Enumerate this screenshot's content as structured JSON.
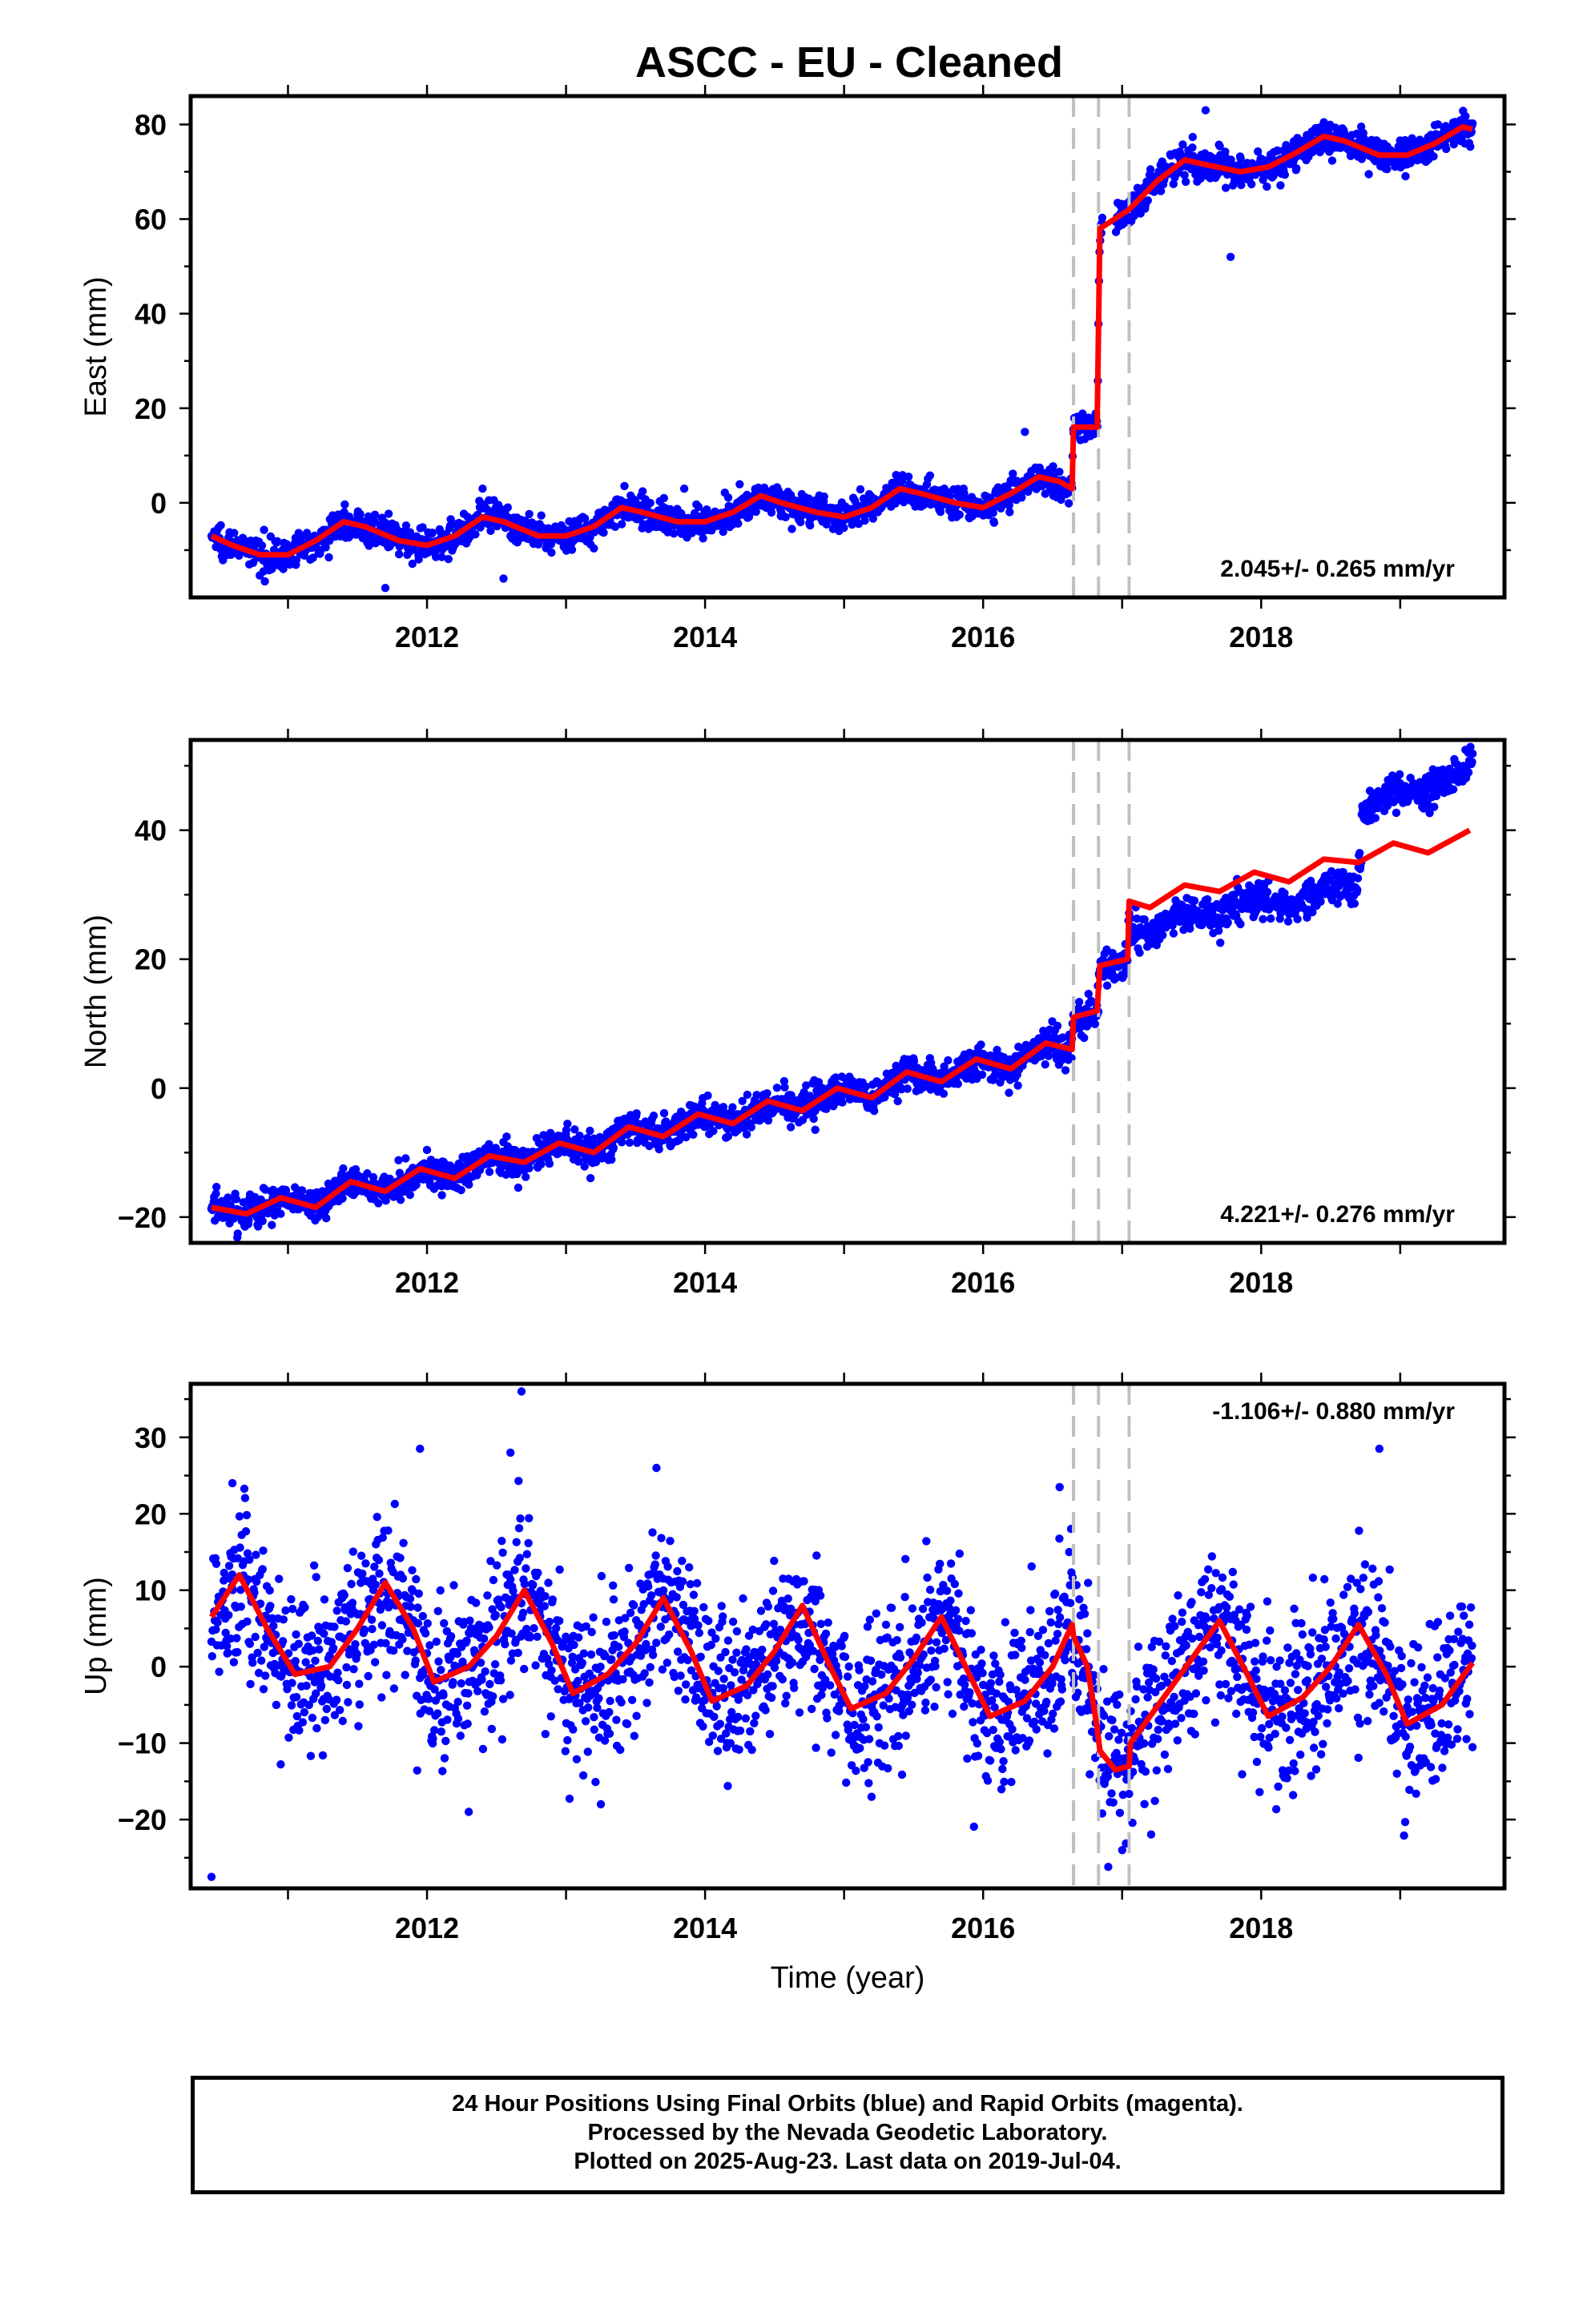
{
  "title": "ASCC  - EU - Cleaned",
  "footer": {
    "line1": "24 Hour Positions Using Final Orbits (blue) and Rapid Orbits (magenta).",
    "line2": "Processed by the Nevada Geodetic Laboratory.",
    "line3": "Plotted on 2025-Aug-23. Last data on 2019-Jul-04."
  },
  "colors": {
    "data_points": "#0000ff",
    "model_line": "#ff0000",
    "event_lines": "#c0c0c0"
  },
  "chart_data": [
    {
      "type": "scatter",
      "ylabel": "East (mm)",
      "xlabel": "",
      "xlim": [
        2010.3,
        2019.75
      ],
      "ylim": [
        -20,
        86
      ],
      "xticks": [
        2012,
        2014,
        2016,
        2018
      ],
      "xtick_labels": [
        "2012",
        "2014",
        "2016",
        "2018"
      ],
      "yticks": [
        0,
        20,
        40,
        60,
        80
      ],
      "ytick_labels": [
        "0",
        "20",
        "40",
        "60",
        "80"
      ],
      "rate_label": "2.045+/- 0.265 mm/yr",
      "rate_position": "bottom-right",
      "event_lines": [
        2016.65,
        2016.83,
        2017.05
      ],
      "model_knots": [
        [
          2010.45,
          -7
        ],
        [
          2010.6,
          -9
        ],
        [
          2010.8,
          -11
        ],
        [
          2011.0,
          -11
        ],
        [
          2011.2,
          -8
        ],
        [
          2011.4,
          -4
        ],
        [
          2011.55,
          -5
        ],
        [
          2011.8,
          -8
        ],
        [
          2012.0,
          -9
        ],
        [
          2012.2,
          -7
        ],
        [
          2012.4,
          -3
        ],
        [
          2012.55,
          -4
        ],
        [
          2012.8,
          -7
        ],
        [
          2013.0,
          -7
        ],
        [
          2013.2,
          -5
        ],
        [
          2013.4,
          -1
        ],
        [
          2013.55,
          -2
        ],
        [
          2013.8,
          -4
        ],
        [
          2014.0,
          -4
        ],
        [
          2014.2,
          -2
        ],
        [
          2014.4,
          1.5
        ],
        [
          2014.55,
          0
        ],
        [
          2014.8,
          -2
        ],
        [
          2015.0,
          -3
        ],
        [
          2015.2,
          -1
        ],
        [
          2015.4,
          3
        ],
        [
          2015.55,
          2
        ],
        [
          2015.8,
          0
        ],
        [
          2016.0,
          -1
        ],
        [
          2016.2,
          2
        ],
        [
          2016.4,
          5.5
        ],
        [
          2016.55,
          4.5
        ],
        [
          2016.64,
          3
        ],
        [
          2016.65,
          16
        ],
        [
          2016.82,
          16
        ],
        [
          2016.84,
          58
        ],
        [
          2017.05,
          62
        ],
        [
          2017.25,
          68
        ],
        [
          2017.45,
          72.5
        ],
        [
          2017.6,
          71.5
        ],
        [
          2017.85,
          70
        ],
        [
          2018.05,
          71
        ],
        [
          2018.25,
          74
        ],
        [
          2018.45,
          77.5
        ],
        [
          2018.6,
          76.5
        ],
        [
          2018.85,
          73.5
        ],
        [
          2019.05,
          73.5
        ],
        [
          2019.25,
          76
        ],
        [
          2019.45,
          79.5
        ],
        [
          2019.52,
          79
        ]
      ],
      "outliers": [
        [
          2017.78,
          52
        ],
        [
          2011.7,
          -18
        ],
        [
          2012.55,
          -16
        ],
        [
          2016.3,
          15
        ],
        [
          2017.6,
          83
        ],
        [
          2012.4,
          3
        ],
        [
          2013.85,
          3
        ]
      ],
      "noise_sigma": 1.6,
      "approx_points": 2300
    },
    {
      "type": "scatter",
      "ylabel": "North (mm)",
      "xlabel": "",
      "xlim": [
        2010.3,
        2019.75
      ],
      "ylim": [
        -24,
        54
      ],
      "xticks": [
        2012,
        2014,
        2016,
        2018
      ],
      "xtick_labels": [
        "2012",
        "2014",
        "2016",
        "2018"
      ],
      "yticks": [
        -20,
        0,
        20,
        40
      ],
      "ytick_labels": [
        "−20",
        "0",
        "20",
        "40"
      ],
      "rate_label": "4.221+/- 0.276 mm/yr",
      "rate_position": "bottom-right",
      "event_lines": [
        2016.65,
        2016.83,
        2017.05
      ],
      "model_knots": [
        [
          2010.45,
          -18.5
        ],
        [
          2010.7,
          -19.5
        ],
        [
          2010.95,
          -17
        ],
        [
          2011.2,
          -18.5
        ],
        [
          2011.45,
          -14.5
        ],
        [
          2011.7,
          -16
        ],
        [
          2011.95,
          -12.5
        ],
        [
          2012.2,
          -14
        ],
        [
          2012.45,
          -10.5
        ],
        [
          2012.7,
          -11.5
        ],
        [
          2012.95,
          -8.5
        ],
        [
          2013.2,
          -10
        ],
        [
          2013.45,
          -6
        ],
        [
          2013.7,
          -7.5
        ],
        [
          2013.95,
          -4
        ],
        [
          2014.2,
          -5.5
        ],
        [
          2014.45,
          -2
        ],
        [
          2014.7,
          -3.5
        ],
        [
          2014.95,
          0
        ],
        [
          2015.2,
          -1.5
        ],
        [
          2015.45,
          2.5
        ],
        [
          2015.7,
          1
        ],
        [
          2015.95,
          4.5
        ],
        [
          2016.2,
          3
        ],
        [
          2016.45,
          7
        ],
        [
          2016.64,
          6
        ],
        [
          2016.65,
          11
        ],
        [
          2016.82,
          12
        ],
        [
          2016.84,
          19
        ],
        [
          2017.04,
          20
        ],
        [
          2017.05,
          29
        ],
        [
          2017.2,
          28
        ],
        [
          2017.45,
          31.5
        ],
        [
          2017.7,
          30.5
        ],
        [
          2017.95,
          33.5
        ],
        [
          2018.2,
          32
        ],
        [
          2018.45,
          35.5
        ],
        [
          2018.7,
          35
        ],
        [
          2018.95,
          38
        ],
        [
          2019.2,
          36.5
        ],
        [
          2019.5,
          40
        ]
      ],
      "data_offset": [
        [
          2016.65,
          -0.5
        ],
        [
          2017.05,
          -4
        ],
        [
          2018.7,
          0
        ],
        [
          2018.72,
          8.5
        ]
      ],
      "noise_sigma": 1.3,
      "approx_points": 2300
    },
    {
      "type": "scatter",
      "ylabel": "Up (mm)",
      "xlabel": "Time (year)",
      "xlim": [
        2010.3,
        2019.75
      ],
      "ylim": [
        -29,
        37
      ],
      "xticks": [
        2012,
        2014,
        2016,
        2018
      ],
      "xtick_labels": [
        "2012",
        "2014",
        "2016",
        "2018"
      ],
      "yticks": [
        -20,
        -10,
        0,
        10,
        20,
        30
      ],
      "ytick_labels": [
        "−20",
        "−10",
        "0",
        "10",
        "20",
        "30"
      ],
      "rate_label": "-1.106+/- 0.880 mm/yr",
      "rate_position": "top-right",
      "event_lines": [
        2016.65,
        2016.83,
        2017.05
      ],
      "model_knots": [
        [
          2010.45,
          6.5
        ],
        [
          2010.65,
          12
        ],
        [
          2010.85,
          5
        ],
        [
          2011.05,
          -1
        ],
        [
          2011.3,
          0
        ],
        [
          2011.5,
          5
        ],
        [
          2011.7,
          11
        ],
        [
          2011.9,
          5
        ],
        [
          2012.05,
          -2
        ],
        [
          2012.3,
          0
        ],
        [
          2012.5,
          4
        ],
        [
          2012.7,
          10
        ],
        [
          2012.9,
          3
        ],
        [
          2013.05,
          -3.5
        ],
        [
          2013.3,
          -1
        ],
        [
          2013.5,
          3
        ],
        [
          2013.7,
          9
        ],
        [
          2013.9,
          2
        ],
        [
          2014.05,
          -4.5
        ],
        [
          2014.3,
          -2.5
        ],
        [
          2014.5,
          2
        ],
        [
          2014.7,
          8
        ],
        [
          2014.9,
          0
        ],
        [
          2015.05,
          -5.5
        ],
        [
          2015.3,
          -3.5
        ],
        [
          2015.5,
          1
        ],
        [
          2015.7,
          6.5
        ],
        [
          2015.9,
          -1
        ],
        [
          2016.05,
          -6.5
        ],
        [
          2016.3,
          -4.5
        ],
        [
          2016.5,
          0
        ],
        [
          2016.64,
          5.5
        ],
        [
          2016.65,
          4
        ],
        [
          2016.75,
          0
        ],
        [
          2016.82,
          -8
        ],
        [
          2016.84,
          -11
        ],
        [
          2016.95,
          -13.5
        ],
        [
          2017.05,
          -13
        ],
        [
          2017.06,
          -10
        ],
        [
          2017.3,
          -4
        ],
        [
          2017.5,
          1
        ],
        [
          2017.7,
          6
        ],
        [
          2017.9,
          -1
        ],
        [
          2018.05,
          -6.5
        ],
        [
          2018.3,
          -4
        ],
        [
          2018.5,
          0
        ],
        [
          2018.7,
          5.5
        ],
        [
          2018.9,
          -1
        ],
        [
          2019.05,
          -7.5
        ],
        [
          2019.3,
          -5
        ],
        [
          2019.52,
          0.5
        ]
      ],
      "outliers": [
        [
          2010.45,
          -27.5
        ],
        [
          2012.68,
          36
        ],
        [
          2018.85,
          28.5
        ],
        [
          2012.6,
          28
        ],
        [
          2011.95,
          28.5
        ],
        [
          2010.6,
          24
        ],
        [
          2013.65,
          26
        ],
        [
          2016.55,
          23.5
        ],
        [
          2012.3,
          -19
        ],
        [
          2013.25,
          -18
        ],
        [
          2017.0,
          -24
        ]
      ],
      "noise_sigma": 5.2,
      "approx_points": 2300
    }
  ]
}
